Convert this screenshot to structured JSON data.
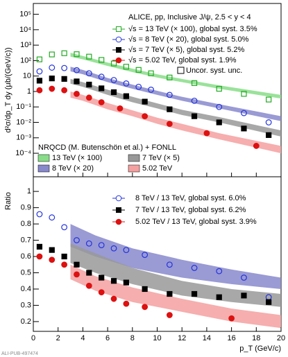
{
  "chart_data": [
    {
      "type": "scatter",
      "log_y": true,
      "title": "ALICE, pp, Inclusive J/ψ, 2.5 < y < 4",
      "ylabel": "d²σ/dp_T dy (μb/(GeV/c))",
      "xlim": [
        0,
        20
      ],
      "ylim": [
        3e-06,
        500000
      ],
      "yticks": [
        {
          "value": 0.0001,
          "label": "10⁻⁴"
        },
        {
          "value": 0.001,
          "label": "10⁻³"
        },
        {
          "value": 0.01,
          "label": "10⁻²"
        },
        {
          "value": 0.1,
          "label": "10⁻¹"
        },
        1,
        10,
        {
          "value": 100,
          "label": "10²"
        },
        {
          "value": 1000,
          "label": "10³"
        },
        {
          "value": 10000,
          "label": "10⁴"
        },
        {
          "value": 100000,
          "label": "10⁵"
        }
      ],
      "series": [
        {
          "name": "√s = 13 TeV (× 100), global syst. 3.5%",
          "color": "#22aa22",
          "marker": "open-square",
          "x": [
            0.5,
            1.5,
            2.5,
            3.5,
            4.5,
            5.5,
            6.5,
            7.5,
            8.5,
            9.5,
            11,
            13,
            15,
            17,
            19
          ],
          "values": [
            120,
            250,
            300,
            260,
            180,
            110,
            65,
            40,
            25,
            15,
            8,
            3.5,
            1.5,
            0.7,
            0.3
          ]
        },
        {
          "name": "√s = 8 TeV (× 20), global syst. 5.0%",
          "color": "#2233dd",
          "marker": "open-circle",
          "x": [
            0.5,
            1.5,
            2.5,
            3.5,
            4.5,
            5.5,
            6.5,
            7.5,
            8.5,
            9.5,
            11,
            13,
            15,
            17,
            19
          ],
          "values": [
            20,
            35,
            33,
            24,
            15,
            9,
            5.5,
            3.3,
            2,
            1.3,
            0.6,
            0.25,
            0.1,
            0.04,
            0.01
          ]
        },
        {
          "name": "√s = 7 TeV (× 5), global syst. 5.2%",
          "color": "#000000",
          "marker": "filled-square",
          "x": [
            0.5,
            1.5,
            2.5,
            3.5,
            4.5,
            5.5,
            6.5,
            7.5,
            9,
            11,
            13,
            15,
            17,
            19
          ],
          "values": [
            5,
            7,
            6.5,
            4.5,
            2.8,
            1.6,
            0.9,
            0.5,
            0.22,
            0.07,
            0.025,
            0.01,
            0.004,
            0.0015
          ]
        },
        {
          "name": "√s = 5.02 TeV, global syst. 1.9%",
          "color": "#dd1111",
          "marker": "filled-circle",
          "x": [
            0.5,
            1.5,
            2.5,
            3.5,
            4.5,
            5.5,
            7,
            9,
            11,
            14,
            18
          ],
          "values": [
            1.2,
            1.5,
            1.2,
            0.7,
            0.4,
            0.2,
            0.08,
            0.025,
            0.008,
            0.002,
            0.0003
          ]
        }
      ],
      "uncor_label": "Uncor. syst. unc.",
      "band_title": "NRQCD (M. Butenschön et al.) + FONLL",
      "bands": [
        {
          "name": "13 TeV (× 100)",
          "color": "#88dd88",
          "x": [
            3,
            4,
            6,
            8,
            10,
            12,
            15,
            20
          ],
          "low": [
            180,
            120,
            45,
            18,
            8,
            4,
            1.5,
            0.35
          ],
          "high": [
            320,
            200,
            75,
            30,
            13,
            6.5,
            2.5,
            0.6
          ]
        },
        {
          "name": "8 TeV (× 20)",
          "color": "#8888cc",
          "x": [
            3,
            4,
            6,
            8,
            10,
            12,
            15,
            20
          ],
          "low": [
            20,
            13,
            4,
            1.5,
            0.6,
            0.25,
            0.08,
            0.012
          ],
          "high": [
            40,
            25,
            7.5,
            2.8,
            1.1,
            0.45,
            0.15,
            0.025
          ]
        },
        {
          "name": "7 TeV (× 5)",
          "color": "#999999",
          "x": [
            3,
            4,
            6,
            8,
            10,
            12,
            15,
            20
          ],
          "low": [
            3.2,
            2,
            0.6,
            0.2,
            0.08,
            0.03,
            0.01,
            0.0012
          ],
          "high": [
            6.5,
            4,
            1.3,
            0.45,
            0.17,
            0.065,
            0.022,
            0.003
          ]
        },
        {
          "name": "5.02 TeV",
          "color": "#f4a0a0",
          "x": [
            3,
            4,
            6,
            8,
            10,
            12,
            15,
            20
          ],
          "low": [
            0.4,
            0.25,
            0.07,
            0.025,
            0.008,
            0.003,
            0.0008,
            0.0001
          ],
          "high": [
            1.0,
            0.6,
            0.18,
            0.06,
            0.02,
            0.008,
            0.002,
            0.0003
          ]
        }
      ]
    },
    {
      "type": "scatter",
      "log_y": false,
      "ylabel": "Ratio",
      "xlabel": "p_T (GeV/c)",
      "xlim": [
        0,
        20
      ],
      "ylim": [
        0.14,
        1.09
      ],
      "xticks": [
        0,
        2,
        4,
        6,
        8,
        10,
        12,
        14,
        16,
        18,
        20
      ],
      "yticks": [
        0.2,
        0.3,
        0.4,
        0.5,
        0.6,
        0.7,
        0.8,
        0.9,
        1
      ],
      "series": [
        {
          "name": "8 TeV / 13 TeV, global syst. 6.0%",
          "color": "#2233dd",
          "marker": "open-circle",
          "x": [
            0.5,
            1.5,
            2.5,
            3.5,
            4.5,
            5.5,
            6.5,
            7.5,
            9,
            11,
            13,
            15,
            17,
            19
          ],
          "values": [
            0.86,
            0.84,
            0.78,
            0.7,
            0.68,
            0.67,
            0.65,
            0.64,
            0.61,
            0.55,
            0.53,
            0.51,
            0.47,
            0.35
          ]
        },
        {
          "name": "7 TeV / 13 TeV, global syst. 6.2%",
          "color": "#000000",
          "marker": "filled-square",
          "x": [
            0.5,
            1.5,
            2.5,
            3.5,
            4.5,
            5.5,
            6.5,
            7.5,
            9,
            11,
            13,
            15,
            17,
            19
          ],
          "values": [
            0.66,
            0.64,
            0.6,
            0.55,
            0.5,
            0.47,
            0.45,
            0.44,
            0.4,
            0.37,
            0.37,
            0.35,
            0.36,
            0.32
          ]
        },
        {
          "name": "5.02 TeV / 13 TeV, global syst. 3.9%",
          "color": "#dd1111",
          "marker": "filled-circle",
          "x": [
            0.5,
            1.5,
            2.5,
            3.5,
            4.5,
            5.5,
            6.5,
            7.5,
            9,
            11,
            16
          ],
          "values": [
            0.6,
            0.58,
            0.55,
            0.49,
            0.42,
            0.38,
            0.34,
            0.31,
            0.29,
            0.24,
            0.22
          ]
        }
      ],
      "bands": [
        {
          "color": "#8888cc",
          "x": [
            3,
            5,
            8,
            12,
            16,
            20
          ],
          "low": [
            0.66,
            0.6,
            0.53,
            0.47,
            0.43,
            0.4
          ],
          "high": [
            0.8,
            0.73,
            0.65,
            0.58,
            0.52,
            0.47
          ]
        },
        {
          "color": "#999999",
          "x": [
            3,
            5,
            8,
            12,
            16,
            20
          ],
          "low": [
            0.56,
            0.5,
            0.43,
            0.36,
            0.32,
            0.29
          ],
          "high": [
            0.68,
            0.62,
            0.53,
            0.45,
            0.4,
            0.37
          ]
        },
        {
          "color": "#f4a0a0",
          "x": [
            3,
            5,
            8,
            12,
            16,
            20
          ],
          "low": [
            0.46,
            0.39,
            0.32,
            0.26,
            0.2,
            0.16
          ],
          "high": [
            0.55,
            0.48,
            0.41,
            0.34,
            0.28,
            0.24
          ]
        }
      ]
    }
  ],
  "watermark": "ALI-PUB-497474"
}
